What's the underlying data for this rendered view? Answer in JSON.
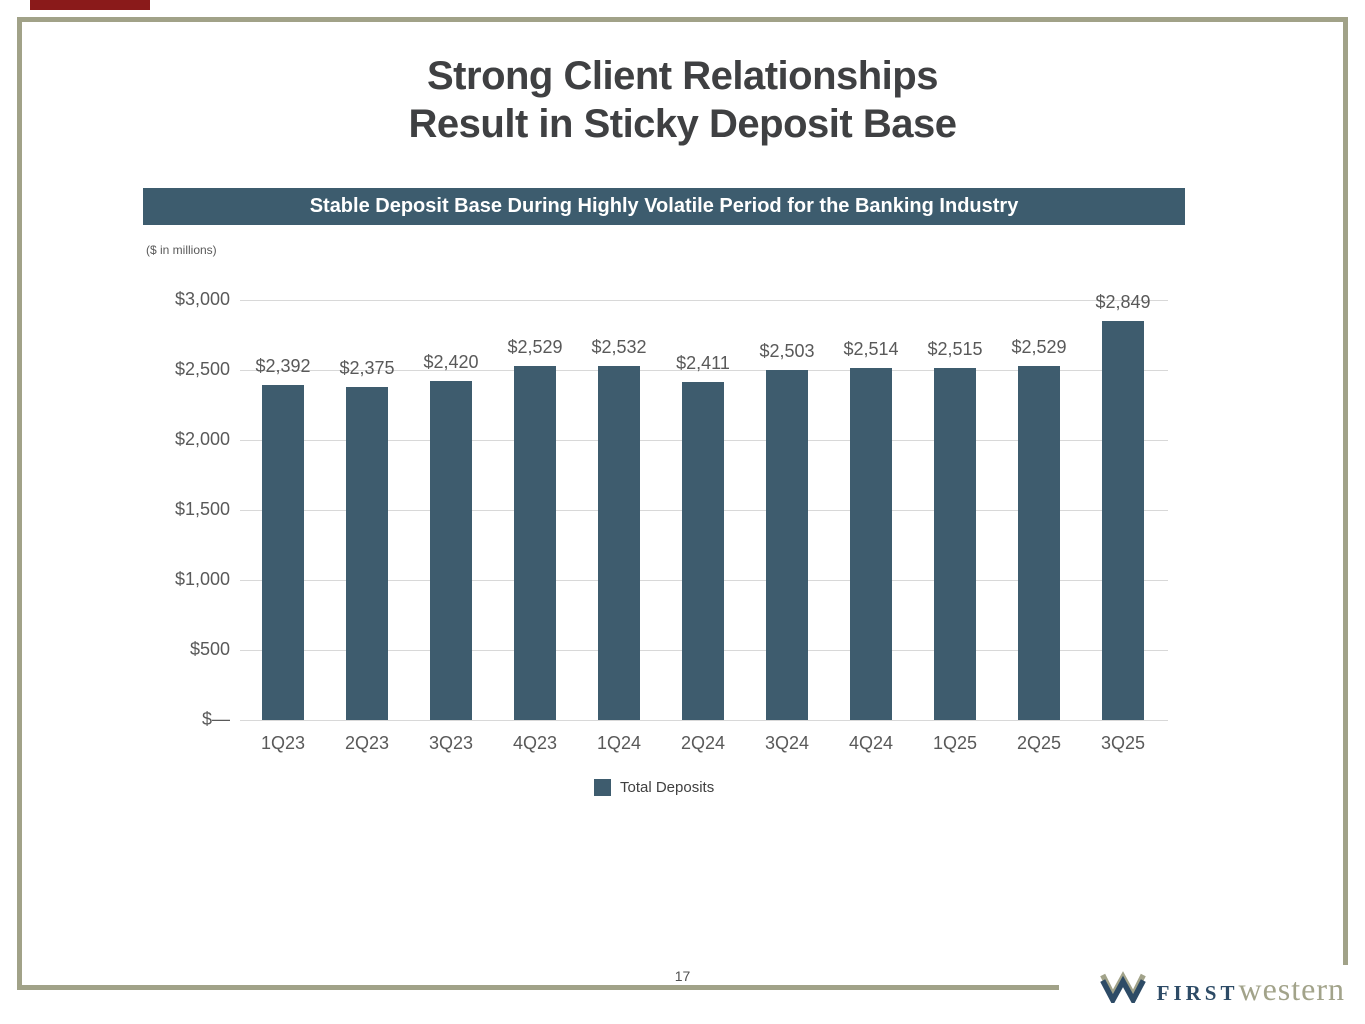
{
  "slide": {
    "title_line1": "Strong Client Relationships",
    "title_line2": "Result in Sticky Deposit Base",
    "banner": "Stable Deposit Base During Highly Volatile Period for the Banking Industry",
    "units_note": "($ in millions)",
    "page_number": "17"
  },
  "legend": {
    "label": "Total Deposits"
  },
  "logo": {
    "first_text": "FIRST",
    "western_text": "western",
    "mark": "w-mark-icon"
  },
  "colors": {
    "bar": "#3e5c6e",
    "banner_bg": "#3d5c6e",
    "frame_border": "#a1a288",
    "accent_red": "#8a1a1a",
    "logo_navy": "#2d4b66",
    "logo_olive": "#a2a38a",
    "gridline": "#d8d8d8"
  },
  "chart_data": {
    "type": "bar",
    "title": "Stable Deposit Base During Highly Volatile Period for the Banking Industry",
    "units": "$ in millions",
    "categories": [
      "1Q23",
      "2Q23",
      "3Q23",
      "4Q23",
      "1Q24",
      "2Q24",
      "3Q24",
      "4Q24",
      "1Q25",
      "2Q25",
      "3Q25"
    ],
    "series": [
      {
        "name": "Total Deposits",
        "values": [
          2392,
          2375,
          2420,
          2529,
          2532,
          2411,
          2503,
          2514,
          2515,
          2529,
          2849
        ]
      }
    ],
    "value_labels": [
      "$2,392",
      "$2,375",
      "$2,420",
      "$2,529",
      "$2,532",
      "$2,411",
      "$2,503",
      "$2,514",
      "$2,515",
      "$2,529",
      "$2,849"
    ],
    "ylim": [
      0,
      3000
    ],
    "y_ticks": [
      "$3,000",
      "$2,500",
      "$2,000",
      "$1,500",
      "$1,000",
      "$500",
      "$—"
    ],
    "xlabel": "",
    "ylabel": "",
    "grid": true,
    "legend_position": "bottom"
  }
}
